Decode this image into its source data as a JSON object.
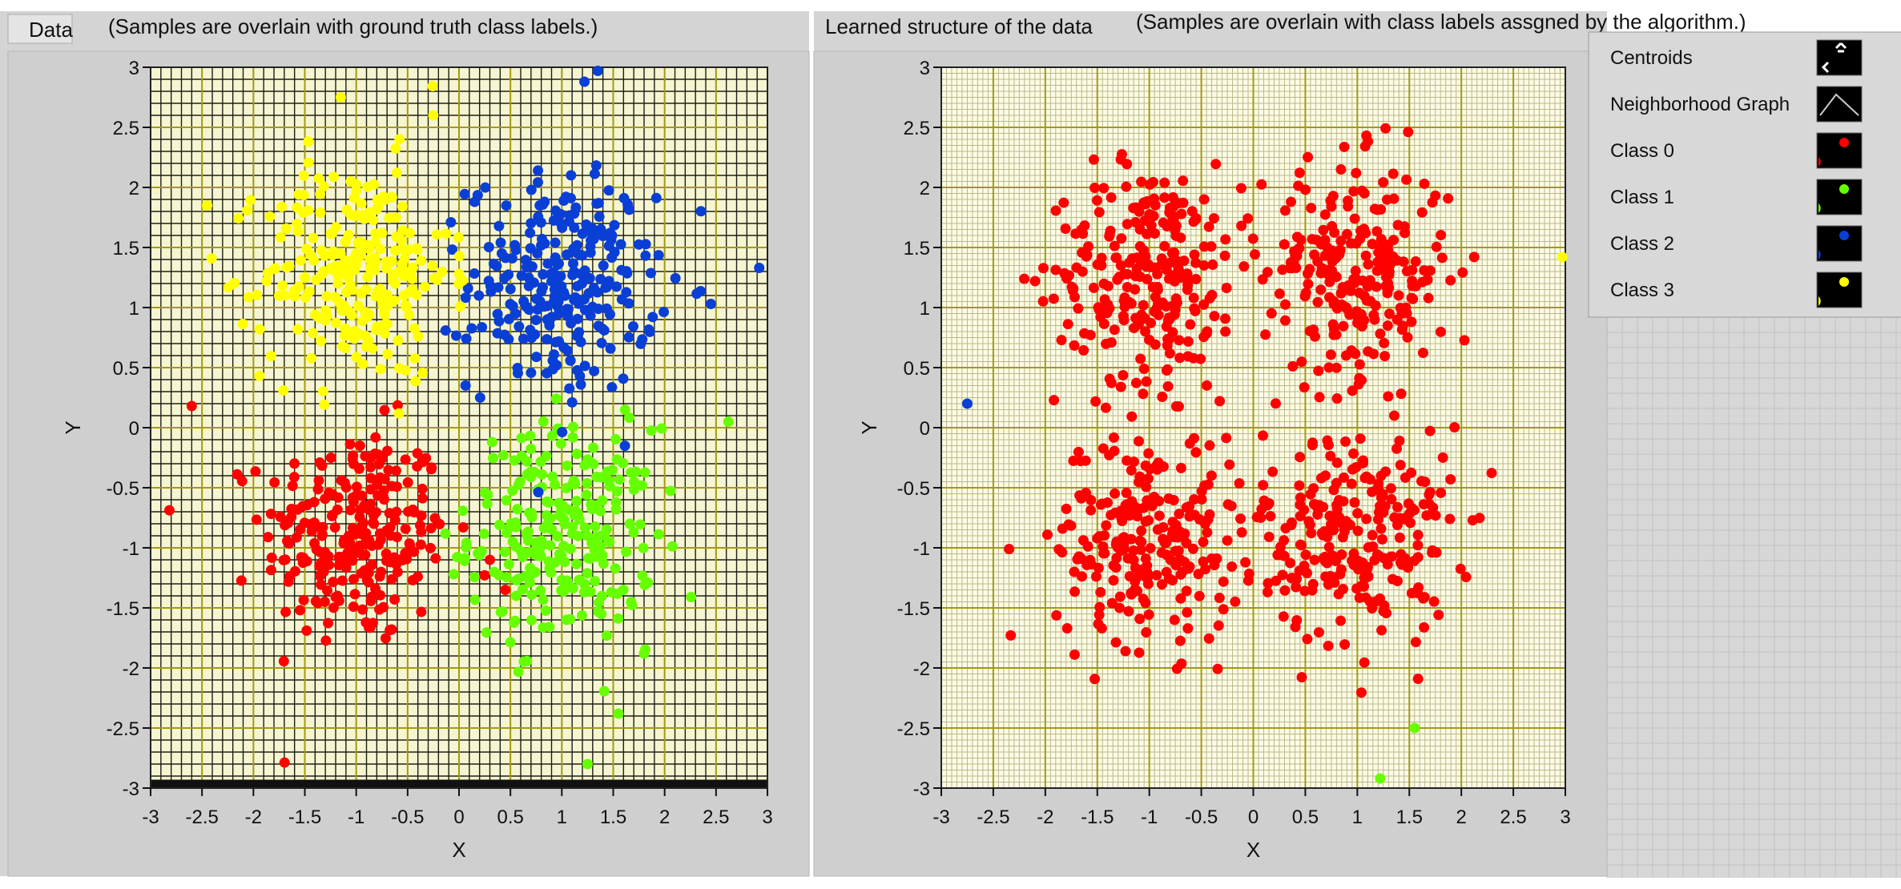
{
  "panels": {
    "left_tab": "Data",
    "left_caption": "(Samples are overlain with ground truth class labels.)",
    "right_tab": "Learned structure of the data",
    "right_caption": "(Samples are overlain with class labels assgned by the algorithm.)"
  },
  "legend": {
    "items": [
      {
        "label": "Centroids",
        "icon": "centroid-icon"
      },
      {
        "label": "Neighborhood Graph",
        "icon": "line-icon"
      },
      {
        "label": "Class 0",
        "icon": "red-point-icon",
        "color": "#ff0000"
      },
      {
        "label": "Class 1",
        "icon": "green-point-icon",
        "color": "#66ff00"
      },
      {
        "label": "Class 2",
        "icon": "blue-point-icon",
        "color": "#0a3fd6"
      },
      {
        "label": "Class 3",
        "icon": "yellow-point-icon",
        "color": "#ffff00"
      }
    ]
  },
  "colors": {
    "panel_bg": "#d4d4d4",
    "plot_bg_left": "#f6f5d2",
    "plot_bg_right": "#fbfbe6",
    "grid_major": "#a39a12",
    "grid_minor_left": "#1e1e14",
    "grid_minor_right": "#bdb88a",
    "class0": "#ff0000",
    "class1": "#66ff00",
    "class2": "#0a3fd6",
    "class3": "#ffff00"
  },
  "chart_data": [
    {
      "type": "scatter",
      "xlabel": "X",
      "ylabel": "Y",
      "xlim": [
        -3,
        3
      ],
      "ylim": [
        -3,
        3
      ],
      "xticks": [
        "-3",
        "-2.5",
        "-2",
        "-1.5",
        "-1",
        "-0.5",
        "0",
        "0.5",
        "1",
        "1.5",
        "2",
        "2.5",
        "3"
      ],
      "yticks": [
        "3",
        "2.5",
        "2",
        "1.5",
        "1",
        "0.5",
        "0",
        "-0.5",
        "-1",
        "-1.5",
        "-2",
        "-2.5",
        "-3"
      ],
      "grid": true,
      "series": [
        {
          "class": 0,
          "cluster_center": [
            -1.0,
            -0.9
          ],
          "spread": 0.45,
          "count": 250,
          "outliers": [
            [
              -2.6,
              0.18
            ],
            [
              0.3,
              -1.1
            ],
            [
              0.45,
              -1.35
            ]
          ]
        },
        {
          "class": 1,
          "cluster_center": [
            1.0,
            -0.9
          ],
          "spread": 0.45,
          "count": 250,
          "outliers": [
            [
              1.55,
              -2.38
            ],
            [
              1.25,
              -2.8
            ],
            [
              2.62,
              0.05
            ],
            [
              1.8,
              -1.88
            ]
          ]
        },
        {
          "class": 2,
          "cluster_center": [
            1.0,
            1.2
          ],
          "spread": 0.45,
          "count": 250,
          "outliers": [
            [
              1.35,
              2.97
            ],
            [
              2.92,
              1.33
            ],
            [
              2.45,
              1.03
            ],
            [
              1.22,
              2.88
            ]
          ]
        },
        {
          "class": 3,
          "cluster_center": [
            -1.0,
            1.3
          ],
          "spread": 0.45,
          "count": 250,
          "outliers": [
            [
              -2.45,
              1.85
            ],
            [
              -1.15,
              2.75
            ],
            [
              -0.25,
              2.6
            ]
          ]
        }
      ]
    },
    {
      "type": "scatter",
      "xlabel": "X",
      "ylabel": "Y",
      "xlim": [
        -3,
        3
      ],
      "ylim": [
        -3,
        3
      ],
      "xticks": [
        "-3",
        "-2.5",
        "-2",
        "-1.5",
        "-1",
        "-0.5",
        "0",
        "0.5",
        "1",
        "1.5",
        "2",
        "2.5",
        "3"
      ],
      "yticks": [
        "3",
        "2.5",
        "2",
        "1.5",
        "1",
        "0.5",
        "0",
        "-0.5",
        "-1",
        "-1.5",
        "-2",
        "-2.5",
        "-3"
      ],
      "grid": true,
      "series": [
        {
          "class": 0,
          "cluster_centers": [
            [
              -1.0,
              1.3
            ],
            [
              1.0,
              1.3
            ],
            [
              -1.0,
              -0.9
            ],
            [
              1.0,
              -0.9
            ]
          ],
          "spread": 0.45,
          "count": 1000
        },
        {
          "class": 1,
          "points": [
            [
              1.55,
              -2.5
            ],
            [
              1.22,
              -2.92
            ]
          ]
        },
        {
          "class": 2,
          "points": [
            [
              -2.75,
              0.2
            ]
          ]
        },
        {
          "class": 3,
          "points": [
            [
              2.97,
              1.42
            ]
          ]
        }
      ]
    }
  ]
}
